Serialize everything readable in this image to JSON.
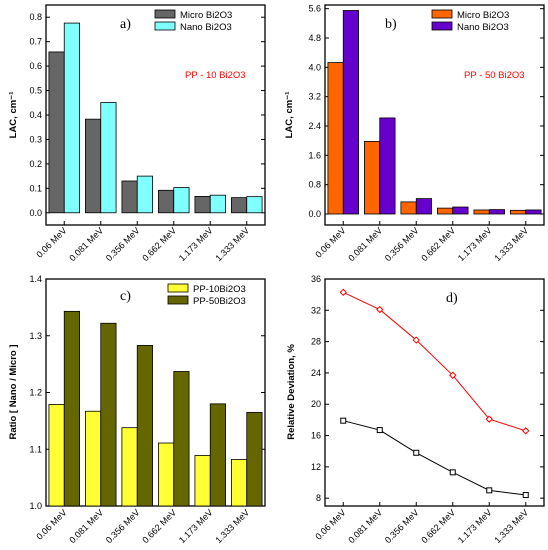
{
  "chart_data": [
    {
      "type": "bar",
      "panel_label": "a)",
      "annotation": "PP - 10 Bi2O3",
      "ylabel": "LAC, cm⁻¹",
      "ylim": [
        -0.05,
        0.85
      ],
      "yticks": [
        "0.0",
        "0.1",
        "0.2",
        "0.3",
        "0.4",
        "0.5",
        "0.6",
        "0.7",
        "0.8"
      ],
      "categories": [
        "0.06 MeV",
        "0.081 MeV",
        "0.356 MeV",
        "0.662 MeV",
        "1.173 MeV",
        "1.333 MeV"
      ],
      "legend_position": "top-right",
      "series": [
        {
          "name": "Micro Bi2O3",
          "color": "#666666",
          "values": [
            0.658,
            0.383,
            0.13,
            0.092,
            0.067,
            0.062
          ]
        },
        {
          "name": "Nano Bi2O3",
          "color": "#80ffff",
          "values": [
            0.776,
            0.451,
            0.15,
            0.103,
            0.072,
            0.066
          ]
        }
      ]
    },
    {
      "type": "bar",
      "panel_label": "b)",
      "annotation": "PP - 50 Bi2O3",
      "ylabel": "LAC, cm⁻¹",
      "ylim": [
        -0.3,
        5.7
      ],
      "yticks": [
        "0.0",
        "0.8",
        "1.6",
        "2.4",
        "3.2",
        "4.0",
        "4.8",
        "5.6"
      ],
      "categories": [
        "0.06 MeV",
        "0.081 MeV",
        "0.356 MeV",
        "0.662 MeV",
        "1.173 MeV",
        "1.333 MeV"
      ],
      "legend_position": "top-right",
      "series": [
        {
          "name": "Micro Bi2O3",
          "color": "#ff6600",
          "values": [
            4.13,
            1.98,
            0.33,
            0.16,
            0.11,
            0.1
          ]
        },
        {
          "name": "Nano Bi2O3",
          "color": "#6600cc",
          "values": [
            5.55,
            2.62,
            0.42,
            0.19,
            0.12,
            0.11
          ]
        }
      ]
    },
    {
      "type": "bar",
      "panel_label": "c)",
      "ylabel": "Ratio [ Nano / Micro ]",
      "ylim": [
        1.0,
        1.4
      ],
      "yticks": [
        "1.0",
        "1.1",
        "1.2",
        "1.3",
        "1.4"
      ],
      "categories": [
        "0.06 MeV",
        "0.081 MeV",
        "0.356 MeV",
        "0.662 MeV",
        "1.173 MeV",
        "1.333 MeV"
      ],
      "legend_position": "top-right",
      "series": [
        {
          "name": "PP-10Bi2O3",
          "color": "#ffff33",
          "values": [
            1.179,
            1.167,
            1.138,
            1.111,
            1.089,
            1.082
          ]
        },
        {
          "name": "PP-50Bi2O3",
          "color": "#666600",
          "values": [
            1.343,
            1.322,
            1.283,
            1.237,
            1.18,
            1.165
          ]
        }
      ]
    },
    {
      "type": "line",
      "panel_label": "d)",
      "ylabel": "Relative Deviation, %",
      "ylim": [
        7,
        36
      ],
      "yticks": [
        "8",
        "12",
        "16",
        "20",
        "24",
        "28",
        "32",
        "36"
      ],
      "categories": [
        "0.06 MeV",
        "0.081 MeV",
        "0.356 MeV",
        "0.662 MeV",
        "1.173 MeV",
        "1.333 MeV"
      ],
      "series": [
        {
          "color": "#ff0000",
          "marker": "diamond",
          "values": [
            34.3,
            32.1,
            28.2,
            23.7,
            18.1,
            16.6
          ]
        },
        {
          "color": "#000000",
          "marker": "square",
          "values": [
            17.9,
            16.7,
            13.8,
            11.3,
            9.0,
            8.4
          ]
        }
      ]
    }
  ]
}
